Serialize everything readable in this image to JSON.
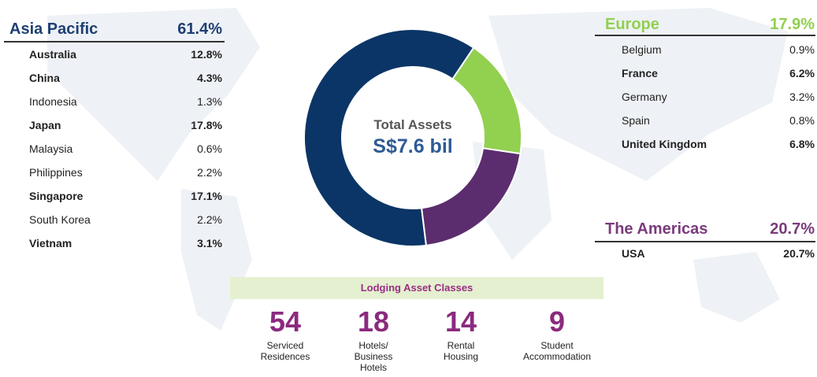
{
  "chart_data": {
    "type": "donut",
    "categories": [
      "Asia Pacific",
      "Europe",
      "The Americas"
    ],
    "values": [
      61.4,
      17.9,
      20.7
    ],
    "value_labels": [
      "61.4%",
      "17.9%",
      "20.7%"
    ],
    "colors": [
      "#0b3566",
      "#92d050",
      "#5c2d6e"
    ],
    "center_title": "Total Assets",
    "center_value": "S$7.6 bil"
  },
  "regions": [
    {
      "rows": [
        {
          "name": "Australia",
          "value": "12.8%",
          "bold": true
        },
        {
          "name": "China",
          "value": "4.3%",
          "bold": true
        },
        {
          "name": "Indonesia",
          "value": "1.3%",
          "bold": false
        },
        {
          "name": "Japan",
          "value": "17.8%",
          "bold": true
        },
        {
          "name": "Malaysia",
          "value": "0.6%",
          "bold": false
        },
        {
          "name": "Philippines",
          "value": "2.2%",
          "bold": false
        },
        {
          "name": "Singapore",
          "value": "17.1%",
          "bold": true
        },
        {
          "name": "South Korea",
          "value": "2.2%",
          "bold": false
        },
        {
          "name": "Vietnam",
          "value": "3.1%",
          "bold": true
        }
      ]
    },
    {
      "rows": [
        {
          "name": "Belgium",
          "value": "0.9%",
          "bold": false
        },
        {
          "name": "France",
          "value": "6.2%",
          "bold": true
        },
        {
          "name": "Germany",
          "value": "3.2%",
          "bold": false
        },
        {
          "name": "Spain",
          "value": "0.8%",
          "bold": false
        },
        {
          "name": "United Kingdom",
          "value": "6.8%",
          "bold": true
        }
      ]
    },
    {
      "rows": [
        {
          "name": "USA",
          "value": "20.7%",
          "bold": true
        }
      ]
    }
  ],
  "lodging": {
    "title": "Lodging Asset Classes",
    "items": [
      {
        "count": 54,
        "label": "Serviced Residences"
      },
      {
        "count": 18,
        "label": "Hotels/ Business Hotels"
      },
      {
        "count": 14,
        "label": "Rental Housing"
      },
      {
        "count": 9,
        "label": "Student Accommodation"
      }
    ]
  }
}
